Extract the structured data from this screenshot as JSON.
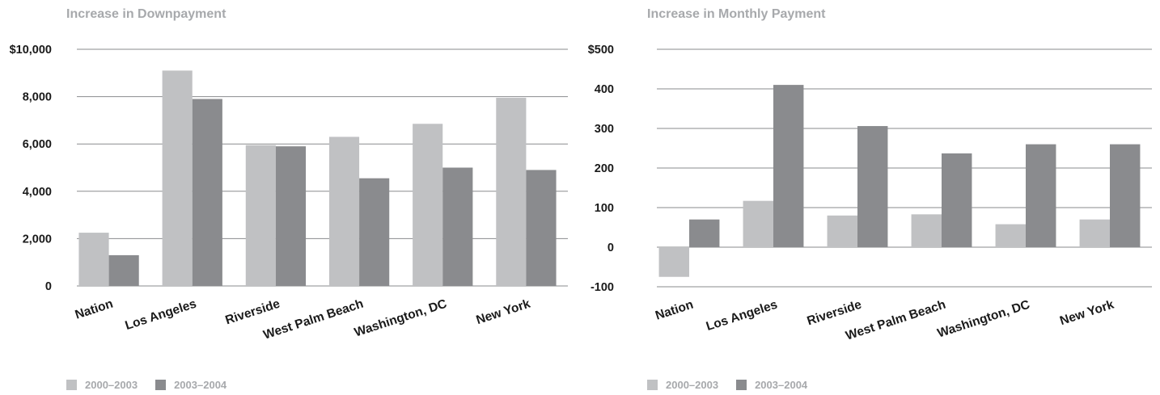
{
  "colors": {
    "series_a": "#c0c1c3",
    "series_b": "#8a8b8e",
    "grid": "#8a8b8e",
    "title": "#a7a9ac",
    "text": "#1a1a1a"
  },
  "chart_data": [
    {
      "type": "bar",
      "title": "Increase in Downpayment",
      "categories": [
        "Nation",
        "Los Angeles",
        "Riverside",
        "West Palm Beach",
        "Washington, DC",
        "New York"
      ],
      "series": [
        {
          "name": "2000–2003",
          "values": [
            2250,
            9100,
            5950,
            6300,
            6850,
            7950
          ]
        },
        {
          "name": "2003–2004",
          "values": [
            1300,
            7900,
            5900,
            4550,
            5000,
            4900
          ]
        }
      ],
      "ylim": [
        0,
        10000
      ],
      "yticks": [
        0,
        2000,
        4000,
        6000,
        8000,
        10000
      ],
      "ytick_labels": [
        "0",
        "2,000",
        "4,000",
        "6,000",
        "8,000",
        "$10,000"
      ],
      "grid": true,
      "legend": "bottom-left"
    },
    {
      "type": "bar",
      "title": "Increase in Monthly Payment",
      "categories": [
        "Nation",
        "Los Angeles",
        "Riverside",
        "West Palm Beach",
        "Washington, DC",
        "New York"
      ],
      "series": [
        {
          "name": "2000–2003",
          "values": [
            -75,
            117,
            80,
            83,
            58,
            70
          ]
        },
        {
          "name": "2003–2004",
          "values": [
            70,
            410,
            306,
            237,
            260,
            260
          ]
        }
      ],
      "ylim": [
        -100,
        500
      ],
      "yticks": [
        -100,
        0,
        100,
        200,
        300,
        400,
        500
      ],
      "ytick_labels": [
        "-100",
        "0",
        "100",
        "200",
        "300",
        "400",
        "$500"
      ],
      "grid": true,
      "legend": "bottom-left"
    }
  ]
}
